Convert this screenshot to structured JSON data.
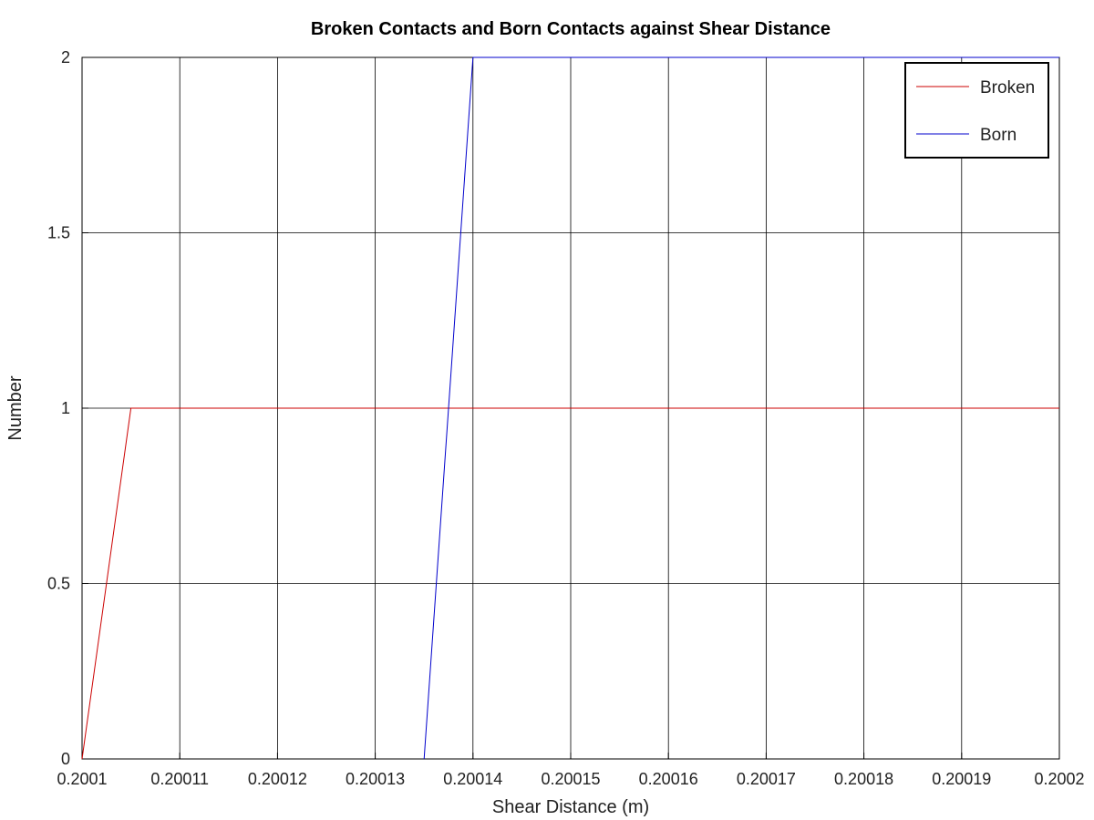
{
  "chart_data": {
    "type": "line",
    "title": "Broken Contacts and Born Contacts against Shear Distance",
    "xlabel": "Shear Distance (m)",
    "ylabel": "Number",
    "xlim": [
      0.2001,
      0.2002
    ],
    "ylim": [
      0,
      2
    ],
    "x_ticks": [
      0.2001,
      0.20011,
      0.20012,
      0.20013,
      0.20014,
      0.20015,
      0.20016,
      0.20017,
      0.20018,
      0.20019,
      0.2002
    ],
    "x_tick_labels": [
      "0.2001",
      "0.20011",
      "0.20012",
      "0.20013",
      "0.20014",
      "0.20015",
      "0.20016",
      "0.20017",
      "0.20018",
      "0.20019",
      "0.2002"
    ],
    "y_ticks": [
      0,
      0.5,
      1,
      1.5,
      2
    ],
    "y_tick_labels": [
      "0",
      "0.5",
      "1",
      "1.5",
      "2"
    ],
    "grid": true,
    "legend_position": "top-right",
    "series": [
      {
        "name": "Broken",
        "color": "#cc0000",
        "x": [
          0.2001,
          0.200105,
          0.2002
        ],
        "y": [
          0,
          1,
          1
        ]
      },
      {
        "name": "Born",
        "color": "#0000cc",
        "x": [
          0.200135,
          0.20014,
          0.2002
        ],
        "y": [
          0,
          2,
          2
        ]
      }
    ]
  }
}
